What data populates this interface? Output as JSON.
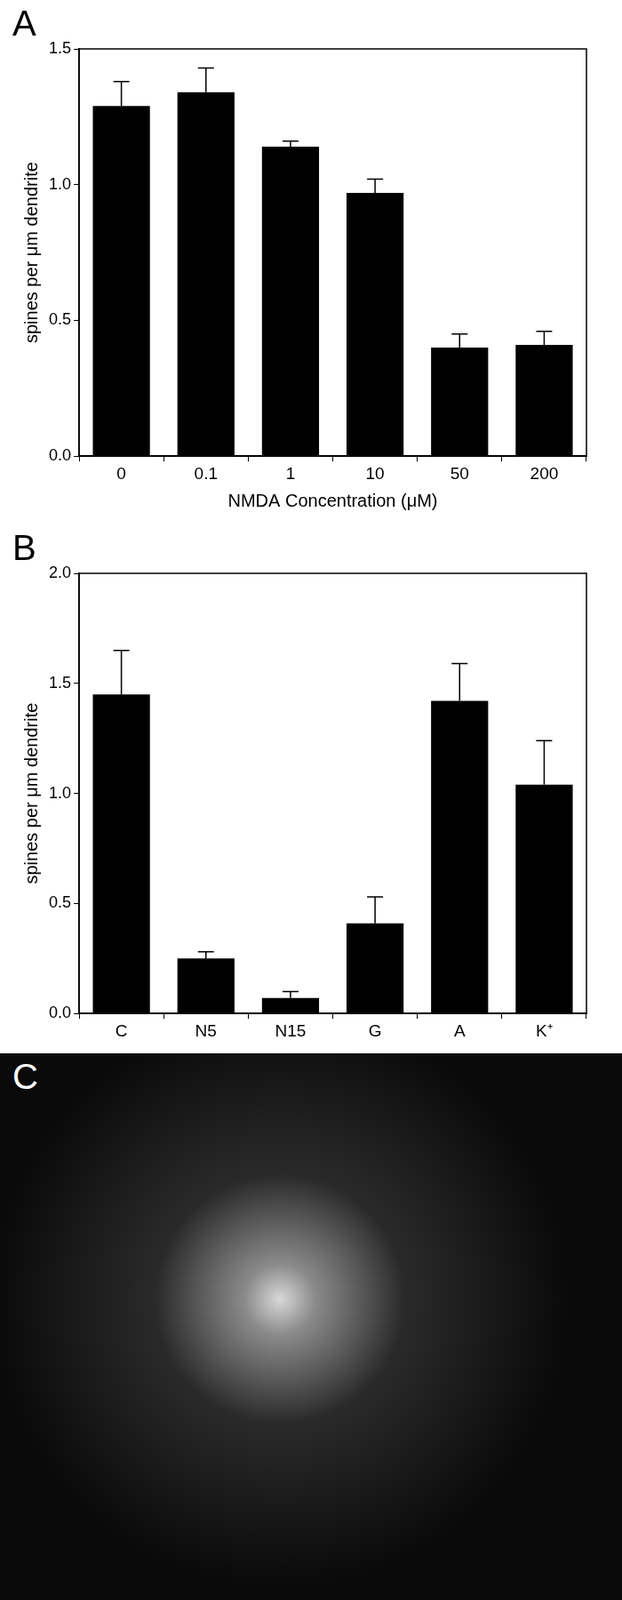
{
  "chart_data": [
    {
      "type": "bar",
      "title": "A",
      "categories": [
        "0",
        "0.1",
        "1",
        "10",
        "50",
        "200"
      ],
      "values": [
        1.29,
        1.34,
        1.14,
        0.97,
        0.4,
        0.41
      ],
      "error": [
        0.09,
        0.09,
        0.02,
        0.05,
        0.05,
        0.05
      ],
      "color": "#000000",
      "xlabel": "NMDA Concentration (μM)",
      "ylabel": "spines per μm dendrite",
      "ylim": [
        0,
        1.5
      ],
      "yticks": [
        {
          "value": 0,
          "label": "0.0"
        },
        0.5,
        {
          "value": 1,
          "label": "1.0"
        },
        1.5
      ],
      "grid": false
    },
    {
      "type": "bar",
      "title": "B",
      "categories": [
        "C",
        "N5",
        "N15",
        "G",
        "A",
        "K⁺"
      ],
      "values": [
        1.45,
        0.25,
        0.07,
        0.41,
        1.42,
        1.04
      ],
      "error": [
        0.2,
        0.03,
        0.03,
        0.12,
        0.17,
        0.2
      ],
      "color": "#000000",
      "ylabel": "spines per μm dendrite",
      "ylim": [
        0,
        2
      ],
      "yticks": [
        {
          "value": 0,
          "label": "0.0"
        },
        0.5,
        {
          "value": 1,
          "label": "1.0"
        },
        1.5,
        {
          "value": 2,
          "label": "2.0"
        }
      ],
      "grid": false
    }
  ],
  "image_panel": {
    "label": "C"
  }
}
